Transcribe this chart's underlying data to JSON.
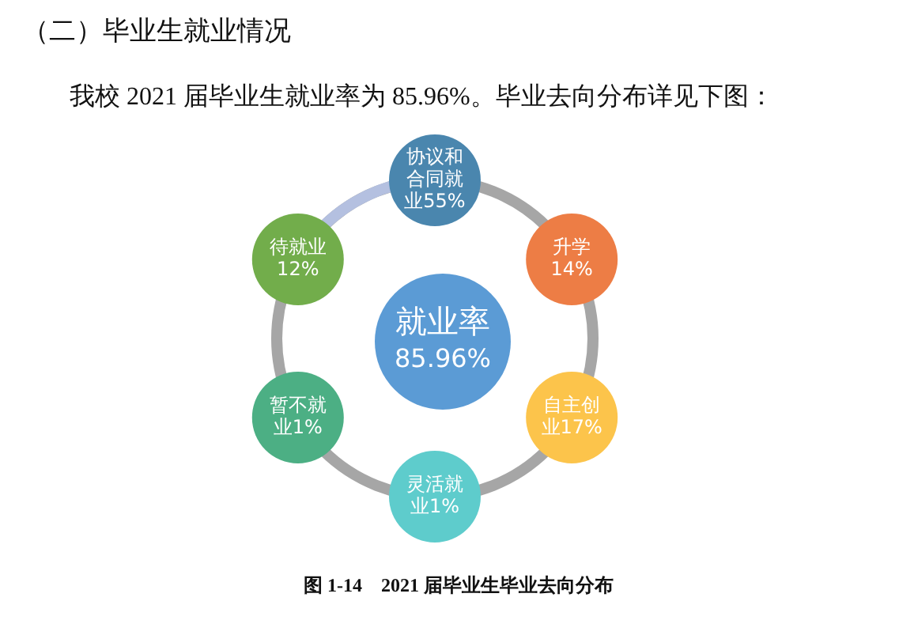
{
  "chart_data": {
    "type": "other",
    "title": "（二）毕业生就业情况",
    "subtitle": "我校 2021 届毕业生就业率为 85.96%。毕业去向分布详见下图：",
    "categories": [
      "协议和合同就业",
      "升学",
      "自主创业",
      "灵活就业",
      "暂不就业",
      "待就业"
    ],
    "values": [
      55,
      14,
      17,
      1,
      1,
      12
    ],
    "value_labels": [
      "55%",
      "14%",
      "17%",
      "1%",
      "1%",
      "12%"
    ],
    "colors": [
      "#4a86ae",
      "#ed7d45",
      "#fcc44b",
      "#5ecccc",
      "#4caf84",
      "#72ad4b"
    ],
    "annotations": [
      "就业率",
      "85.96%",
      "图 1-14　2021 届毕业生毕业去向分布"
    ]
  }
}
